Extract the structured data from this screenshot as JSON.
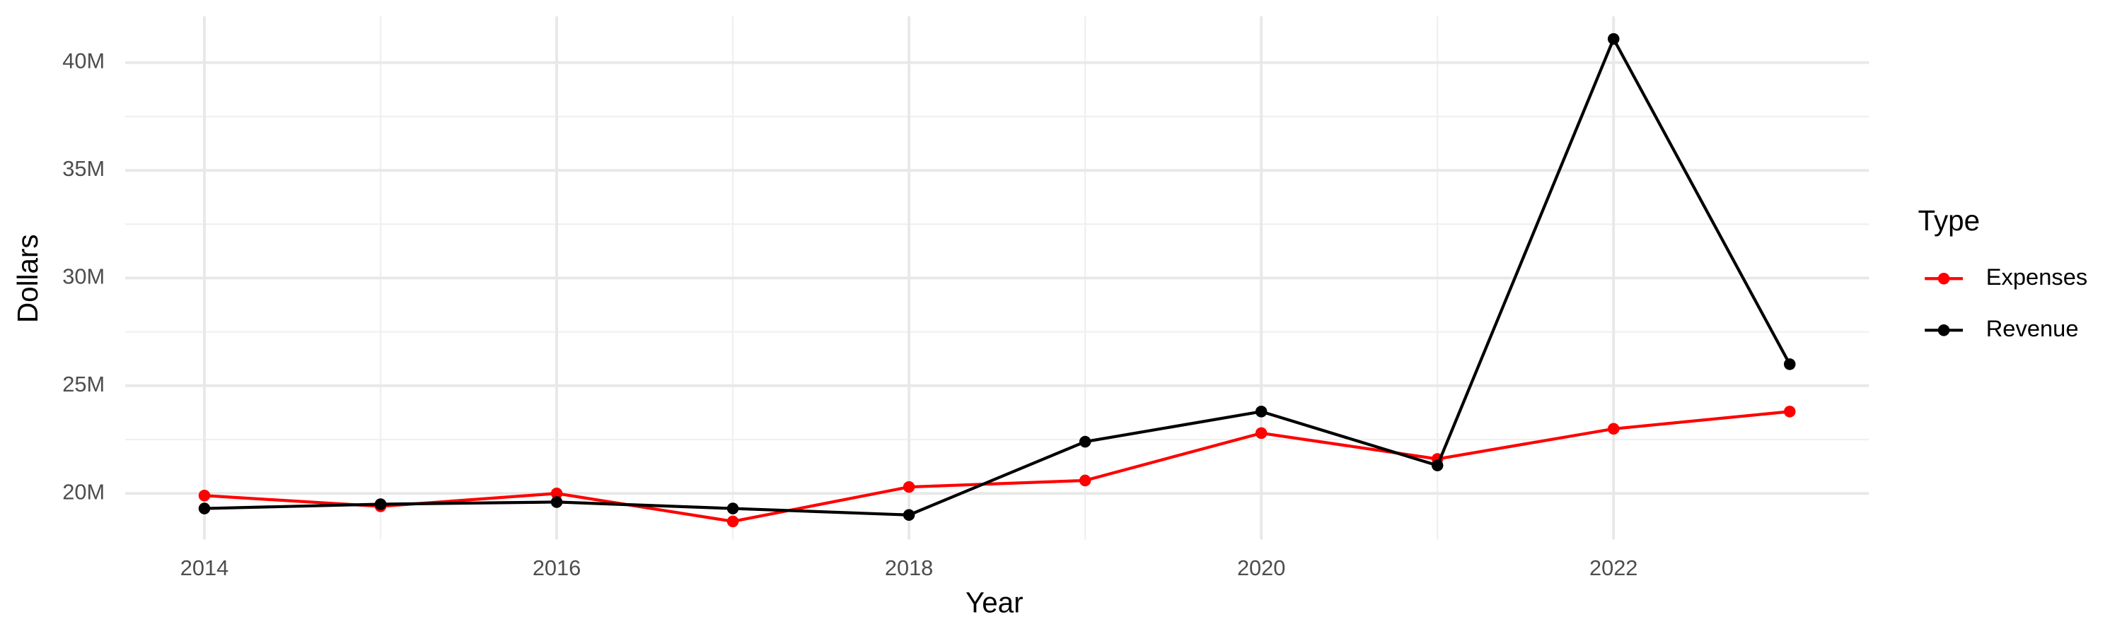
{
  "chart_data": {
    "type": "line",
    "x_label": "Year",
    "y_label": "Dollars",
    "legend_title": "Type",
    "x": [
      2014,
      2015,
      2016,
      2017,
      2018,
      2019,
      2020,
      2021,
      2022,
      2023
    ],
    "series": [
      {
        "name": "Expenses",
        "color": "#ff0000",
        "values": [
          19900000,
          19400000,
          20000000,
          18700000,
          20300000,
          20600000,
          22800000,
          21600000,
          23000000,
          23800000
        ]
      },
      {
        "name": "Revenue",
        "color": "#000000",
        "values": [
          19300000,
          19500000,
          19600000,
          19300000,
          19000000,
          22400000,
          23800000,
          21300000,
          41100000,
          26000000
        ]
      }
    ],
    "xlim": [
      2013.55,
      2023.45
    ],
    "xticks": [
      2014,
      2016,
      2018,
      2020,
      2022
    ],
    "ylim": [
      17860000,
      42150000
    ],
    "yticks": [
      {
        "value": 20000000,
        "label": "20M"
      },
      {
        "value": 25000000,
        "label": "25M"
      },
      {
        "value": 30000000,
        "label": "30M"
      },
      {
        "value": 35000000,
        "label": "35M"
      },
      {
        "value": 40000000,
        "label": "40M"
      }
    ],
    "grid": true,
    "legend": "right"
  }
}
